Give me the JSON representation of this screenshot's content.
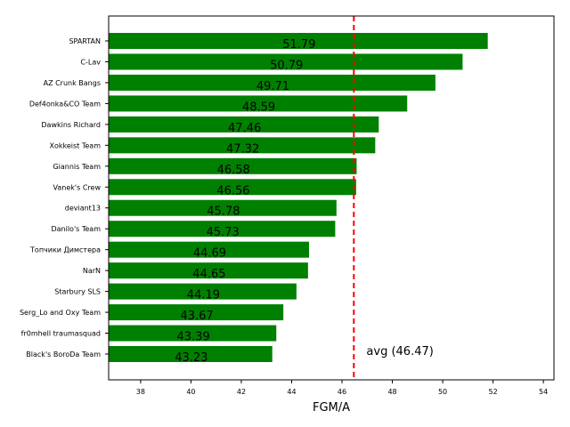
{
  "chart_data": {
    "type": "bar",
    "orientation": "horizontal",
    "categories": [
      "SPARTAN",
      "C-Lav",
      "AZ Crunk Bangs",
      "Def4onka&CO Team",
      "Dawkins Richard",
      "Xokkeist Team",
      "Giannis Team",
      "Vanek's Crew",
      "deviant13",
      "Danilo's Team",
      "Топчики Димстера",
      "NarN",
      "Starbury SLS",
      "Serg_Lo and Oxy Team",
      "fr0mhell traumasquad",
      "Black's BoroDa Team"
    ],
    "values": [
      51.79,
      50.79,
      49.71,
      48.59,
      47.46,
      47.32,
      46.58,
      46.56,
      45.78,
      45.73,
      44.69,
      44.65,
      44.19,
      43.67,
      43.39,
      43.23
    ],
    "data_labels": [
      "51.79",
      "50.79",
      "49.71",
      "48.59",
      "47.46",
      "47.32",
      "46.58",
      "46.56",
      "45.78",
      "45.73",
      "44.69",
      "44.65",
      "44.19",
      "43.67",
      "43.39",
      "43.23"
    ],
    "xlabel": "FGM/A",
    "ylabel": "",
    "xlim": [
      36.73,
      54.42
    ],
    "xticks": [
      "38",
      "40",
      "42",
      "44",
      "46",
      "48",
      "50",
      "52",
      "54"
    ],
    "average": 46.47,
    "average_label": "avg (46.47)",
    "bar_color": "#008000",
    "average_line_color": "#ff0000",
    "grid": false
  }
}
